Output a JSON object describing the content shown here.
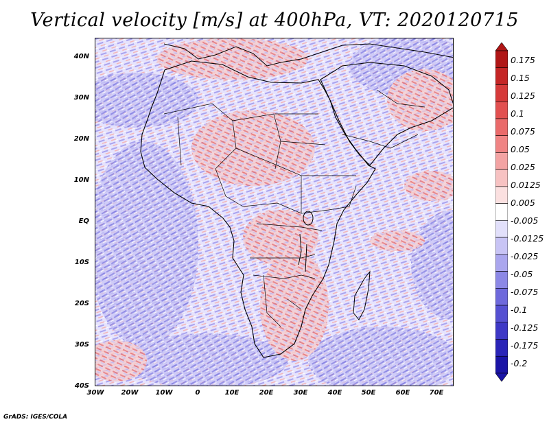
{
  "title": "Vertical velocity [m/s] at 400hPa, VT: 2020120715",
  "map": {
    "region": "Africa",
    "lat_labels": [
      "40N",
      "30N",
      "20N",
      "10N",
      "EQ",
      "10S",
      "20S",
      "30S",
      "40S"
    ],
    "lon_labels": [
      "30W",
      "20W",
      "10W",
      "0",
      "10E",
      "20E",
      "30E",
      "40E",
      "50E",
      "60E",
      "70E"
    ]
  },
  "colorbar": {
    "levels": [
      "0.175",
      "0.15",
      "0.125",
      "0.1",
      "0.075",
      "0.05",
      "0.025",
      "0.0125",
      "0.005",
      "-0.005",
      "-0.0125",
      "-0.025",
      "-0.05",
      "-0.075",
      "-0.1",
      "-0.125",
      "-0.175",
      "-0.2"
    ],
    "colors": [
      "#b01616",
      "#c52626",
      "#d63a3a",
      "#e25050",
      "#ea6a6a",
      "#f08484",
      "#f3a3a3",
      "#f7c2c2",
      "#fbe0e0",
      "#ffffff",
      "#e2e0fb",
      "#c8c4f5",
      "#aaa6ee",
      "#8c88e6",
      "#6e69dc",
      "#5550d2",
      "#3e38c6",
      "#2a24b8",
      "#1a14a6"
    ]
  },
  "footer": "GrADS: IGES/COLA"
}
